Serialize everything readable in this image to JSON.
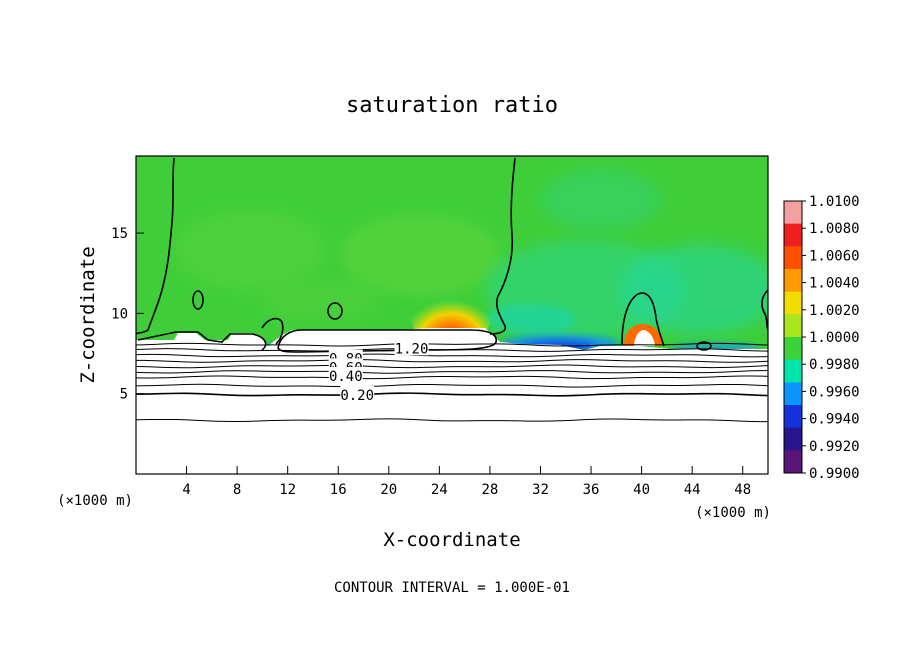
{
  "chart_data": {
    "type": "heatmap",
    "title": "saturation ratio",
    "xlabel": "X-coordinate",
    "ylabel": "Z-coordinate",
    "x_unit_left": "(×1000 m)",
    "x_unit_right": "(×1000 m)",
    "footer": "CONTOUR INTERVAL = 1.000E-01",
    "xlim": [
      0,
      50
    ],
    "ylim": [
      0,
      19.8
    ],
    "x_ticks": [
      4,
      8,
      12,
      16,
      20,
      24,
      28,
      32,
      36,
      40,
      44,
      48
    ],
    "y_ticks": [
      5,
      10,
      15
    ],
    "grid": false,
    "colorbar": {
      "levels": [
        "1.0100",
        "1.0080",
        "1.0060",
        "1.0040",
        "1.0020",
        "1.0000",
        "0.9980",
        "0.9960",
        "0.9940",
        "0.9920",
        "0.9900"
      ],
      "colors": [
        "#f2a0a0",
        "#f01e1e",
        "#ff5000",
        "#ff9a00",
        "#f2dc00",
        "#a8e61e",
        "#3cd23c",
        "#00e6a8",
        "#0a96ff",
        "#1432dc",
        "#28148c",
        "#5a1478"
      ]
    },
    "contour_labels": [
      "1.20",
      "0.80",
      "0.60",
      "0.40",
      "0.20"
    ],
    "contour_label_positions": [
      [
        21.8,
        7.82
      ],
      [
        16.6,
        7.18
      ],
      [
        16.6,
        6.64
      ],
      [
        16.6,
        6.1
      ],
      [
        17.5,
        4.92
      ]
    ],
    "contour_lines_z": [
      8.05,
      7.72,
      7.38,
      7.04,
      6.7,
      6.36,
      6.02,
      5.5,
      4.95,
      3.35
    ],
    "regions": {
      "moist_layer_top_z": 8.6,
      "warm_cap_center": [
        24.6,
        9.25
      ],
      "warm_spot_center": [
        39.4,
        8.3
      ],
      "dry_band_x": [
        29,
        37
      ]
    }
  },
  "colors": {
    "background": "#ffffff",
    "field_base": "#3fce3a",
    "below_layer": "#ffffff"
  }
}
